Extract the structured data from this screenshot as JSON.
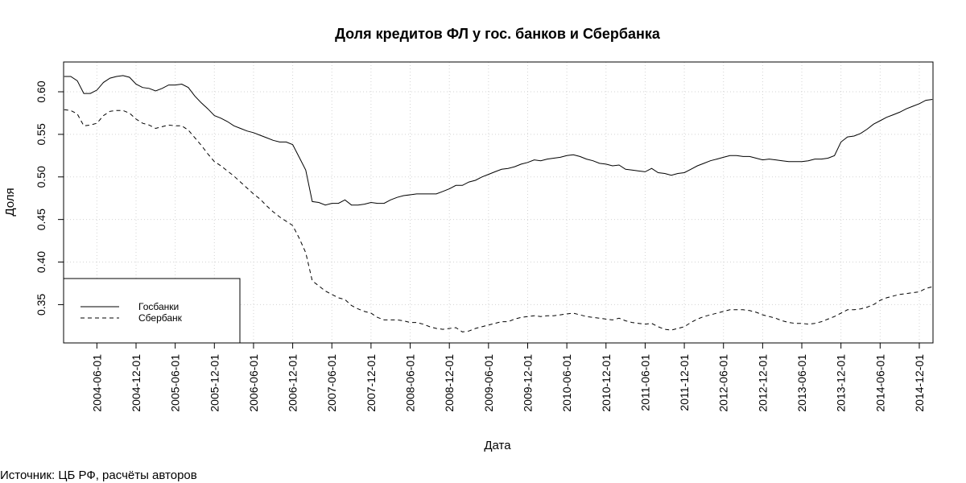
{
  "chart_data": {
    "type": "line",
    "title": "Доля кредитов ФЛ у гос. банков и Сбербанка",
    "xlabel": "Дата",
    "ylabel": "Доля",
    "x_start": "2004-01",
    "x_end": "2015-02",
    "ylim": [
      0.305,
      0.635
    ],
    "yticks": [
      0.35,
      0.4,
      0.45,
      0.5,
      0.55,
      0.6
    ],
    "ytick_labels": [
      "0.35",
      "0.40",
      "0.45",
      "0.50",
      "0.55",
      "0.60"
    ],
    "xtick_labels": [
      "2004-06-01",
      "2004-12-01",
      "2005-06-01",
      "2005-12-01",
      "2006-06-01",
      "2006-12-01",
      "2007-06-01",
      "2007-12-01",
      "2008-06-01",
      "2008-12-01",
      "2009-06-01",
      "2009-12-01",
      "2010-06-01",
      "2010-12-01",
      "2011-06-01",
      "2011-12-01",
      "2012-06-01",
      "2012-12-01",
      "2013-06-01",
      "2013-12-01",
      "2014-06-01",
      "2014-12-01"
    ],
    "grid": true,
    "legend": "bottom-left",
    "series": [
      {
        "name": "Госбанки",
        "line_style": "solid",
        "points": [
          [
            "2004-01",
            0.618
          ],
          [
            "2004-02",
            0.618
          ],
          [
            "2004-03",
            0.613
          ],
          [
            "2004-04",
            0.598
          ],
          [
            "2004-05",
            0.598
          ],
          [
            "2004-06",
            0.602
          ],
          [
            "2004-07",
            0.611
          ],
          [
            "2004-08",
            0.616
          ],
          [
            "2004-09",
            0.618
          ],
          [
            "2004-10",
            0.619
          ],
          [
            "2004-11",
            0.617
          ],
          [
            "2004-12",
            0.609
          ],
          [
            "2005-01",
            0.605
          ],
          [
            "2005-02",
            0.604
          ],
          [
            "2005-03",
            0.601
          ],
          [
            "2005-04",
            0.604
          ],
          [
            "2005-05",
            0.608
          ],
          [
            "2005-06",
            0.608
          ],
          [
            "2005-07",
            0.609
          ],
          [
            "2005-08",
            0.605
          ],
          [
            "2005-09",
            0.595
          ],
          [
            "2005-10",
            0.587
          ],
          [
            "2005-11",
            0.58
          ],
          [
            "2005-12",
            0.572
          ],
          [
            "2006-01",
            0.569
          ],
          [
            "2006-02",
            0.565
          ],
          [
            "2006-03",
            0.56
          ],
          [
            "2006-04",
            0.557
          ],
          [
            "2006-05",
            0.554
          ],
          [
            "2006-06",
            0.552
          ],
          [
            "2006-07",
            0.549
          ],
          [
            "2006-08",
            0.546
          ],
          [
            "2006-09",
            0.543
          ],
          [
            "2006-10",
            0.541
          ],
          [
            "2006-11",
            0.541
          ],
          [
            "2006-12",
            0.538
          ],
          [
            "2007-01",
            0.523
          ],
          [
            "2007-02",
            0.508
          ],
          [
            "2007-03",
            0.471
          ],
          [
            "2007-04",
            0.47
          ],
          [
            "2007-05",
            0.467
          ],
          [
            "2007-06",
            0.469
          ],
          [
            "2007-07",
            0.469
          ],
          [
            "2007-08",
            0.473
          ],
          [
            "2007-09",
            0.467
          ],
          [
            "2007-10",
            0.467
          ],
          [
            "2007-11",
            0.468
          ],
          [
            "2007-12",
            0.47
          ],
          [
            "2008-01",
            0.469
          ],
          [
            "2008-02",
            0.469
          ],
          [
            "2008-03",
            0.473
          ],
          [
            "2008-04",
            0.476
          ],
          [
            "2008-05",
            0.478
          ],
          [
            "2008-06",
            0.479
          ],
          [
            "2008-07",
            0.48
          ],
          [
            "2008-08",
            0.48
          ],
          [
            "2008-09",
            0.48
          ],
          [
            "2008-10",
            0.48
          ],
          [
            "2008-11",
            0.483
          ],
          [
            "2008-12",
            0.486
          ],
          [
            "2009-01",
            0.49
          ],
          [
            "2009-02",
            0.49
          ],
          [
            "2009-03",
            0.494
          ],
          [
            "2009-04",
            0.496
          ],
          [
            "2009-05",
            0.5
          ],
          [
            "2009-06",
            0.503
          ],
          [
            "2009-07",
            0.506
          ],
          [
            "2009-08",
            0.509
          ],
          [
            "2009-09",
            0.51
          ],
          [
            "2009-10",
            0.512
          ],
          [
            "2009-11",
            0.515
          ],
          [
            "2009-12",
            0.517
          ],
          [
            "2010-01",
            0.52
          ],
          [
            "2010-02",
            0.519
          ],
          [
            "2010-03",
            0.521
          ],
          [
            "2010-04",
            0.522
          ],
          [
            "2010-05",
            0.523
          ],
          [
            "2010-06",
            0.525
          ],
          [
            "2010-07",
            0.526
          ],
          [
            "2010-08",
            0.524
          ],
          [
            "2010-09",
            0.521
          ],
          [
            "2010-10",
            0.519
          ],
          [
            "2010-11",
            0.516
          ],
          [
            "2010-12",
            0.515
          ],
          [
            "2011-01",
            0.513
          ],
          [
            "2011-02",
            0.514
          ],
          [
            "2011-03",
            0.509
          ],
          [
            "2011-04",
            0.508
          ],
          [
            "2011-05",
            0.507
          ],
          [
            "2011-06",
            0.506
          ],
          [
            "2011-07",
            0.51
          ],
          [
            "2011-08",
            0.505
          ],
          [
            "2011-09",
            0.504
          ],
          [
            "2011-10",
            0.502
          ],
          [
            "2011-11",
            0.504
          ],
          [
            "2011-12",
            0.505
          ],
          [
            "2012-01",
            0.509
          ],
          [
            "2012-02",
            0.513
          ],
          [
            "2012-03",
            0.516
          ],
          [
            "2012-04",
            0.519
          ],
          [
            "2012-05",
            0.521
          ],
          [
            "2012-06",
            0.523
          ],
          [
            "2012-07",
            0.525
          ],
          [
            "2012-08",
            0.525
          ],
          [
            "2012-09",
            0.524
          ],
          [
            "2012-10",
            0.524
          ],
          [
            "2012-11",
            0.522
          ],
          [
            "2012-12",
            0.52
          ],
          [
            "2013-01",
            0.521
          ],
          [
            "2013-02",
            0.52
          ],
          [
            "2013-03",
            0.519
          ],
          [
            "2013-04",
            0.518
          ],
          [
            "2013-05",
            0.518
          ],
          [
            "2013-06",
            0.518
          ],
          [
            "2013-07",
            0.519
          ],
          [
            "2013-08",
            0.521
          ],
          [
            "2013-09",
            0.521
          ],
          [
            "2013-10",
            0.522
          ],
          [
            "2013-11",
            0.525
          ],
          [
            "2013-12",
            0.541
          ],
          [
            "2014-01",
            0.547
          ],
          [
            "2014-02",
            0.548
          ],
          [
            "2014-03",
            0.551
          ],
          [
            "2014-04",
            0.556
          ],
          [
            "2014-05",
            0.562
          ],
          [
            "2014-06",
            0.566
          ],
          [
            "2014-07",
            0.57
          ],
          [
            "2014-08",
            0.573
          ],
          [
            "2014-09",
            0.576
          ],
          [
            "2014-10",
            0.58
          ],
          [
            "2014-11",
            0.583
          ],
          [
            "2014-12",
            0.586
          ],
          [
            "2015-01",
            0.59
          ],
          [
            "2015-02",
            0.591
          ]
        ]
      },
      {
        "name": "Сбербанк",
        "line_style": "dashed",
        "points": [
          [
            "2004-01",
            0.579
          ],
          [
            "2004-02",
            0.578
          ],
          [
            "2004-03",
            0.574
          ],
          [
            "2004-04",
            0.56
          ],
          [
            "2004-05",
            0.561
          ],
          [
            "2004-06",
            0.563
          ],
          [
            "2004-07",
            0.572
          ],
          [
            "2004-08",
            0.577
          ],
          [
            "2004-09",
            0.578
          ],
          [
            "2004-10",
            0.578
          ],
          [
            "2004-11",
            0.575
          ],
          [
            "2004-12",
            0.568
          ],
          [
            "2005-01",
            0.563
          ],
          [
            "2005-02",
            0.561
          ],
          [
            "2005-03",
            0.557
          ],
          [
            "2005-04",
            0.559
          ],
          [
            "2005-05",
            0.561
          ],
          [
            "2005-06",
            0.56
          ],
          [
            "2005-07",
            0.56
          ],
          [
            "2005-08",
            0.555
          ],
          [
            "2005-09",
            0.546
          ],
          [
            "2005-10",
            0.537
          ],
          [
            "2005-11",
            0.527
          ],
          [
            "2005-12",
            0.518
          ],
          [
            "2006-01",
            0.513
          ],
          [
            "2006-02",
            0.507
          ],
          [
            "2006-03",
            0.501
          ],
          [
            "2006-04",
            0.494
          ],
          [
            "2006-05",
            0.487
          ],
          [
            "2006-06",
            0.48
          ],
          [
            "2006-07",
            0.474
          ],
          [
            "2006-08",
            0.466
          ],
          [
            "2006-09",
            0.459
          ],
          [
            "2006-10",
            0.453
          ],
          [
            "2006-11",
            0.448
          ],
          [
            "2006-12",
            0.443
          ],
          [
            "2007-01",
            0.428
          ],
          [
            "2007-02",
            0.411
          ],
          [
            "2007-03",
            0.378
          ],
          [
            "2007-04",
            0.372
          ],
          [
            "2007-05",
            0.366
          ],
          [
            "2007-06",
            0.362
          ],
          [
            "2007-07",
            0.358
          ],
          [
            "2007-08",
            0.356
          ],
          [
            "2007-09",
            0.349
          ],
          [
            "2007-10",
            0.345
          ],
          [
            "2007-11",
            0.342
          ],
          [
            "2007-12",
            0.34
          ],
          [
            "2008-01",
            0.335
          ],
          [
            "2008-02",
            0.332
          ],
          [
            "2008-03",
            0.332
          ],
          [
            "2008-04",
            0.332
          ],
          [
            "2008-05",
            0.331
          ],
          [
            "2008-06",
            0.329
          ],
          [
            "2008-07",
            0.329
          ],
          [
            "2008-08",
            0.327
          ],
          [
            "2008-09",
            0.324
          ],
          [
            "2008-10",
            0.322
          ],
          [
            "2008-11",
            0.321
          ],
          [
            "2008-12",
            0.322
          ],
          [
            "2009-01",
            0.323
          ],
          [
            "2009-02",
            0.318
          ],
          [
            "2009-03",
            0.319
          ],
          [
            "2009-04",
            0.322
          ],
          [
            "2009-05",
            0.324
          ],
          [
            "2009-06",
            0.326
          ],
          [
            "2009-07",
            0.328
          ],
          [
            "2009-08",
            0.33
          ],
          [
            "2009-09",
            0.33
          ],
          [
            "2009-10",
            0.333
          ],
          [
            "2009-11",
            0.335
          ],
          [
            "2009-12",
            0.336
          ],
          [
            "2010-01",
            0.337
          ],
          [
            "2010-02",
            0.336
          ],
          [
            "2010-03",
            0.337
          ],
          [
            "2010-04",
            0.337
          ],
          [
            "2010-05",
            0.338
          ],
          [
            "2010-06",
            0.339
          ],
          [
            "2010-07",
            0.34
          ],
          [
            "2010-08",
            0.338
          ],
          [
            "2010-09",
            0.336
          ],
          [
            "2010-10",
            0.335
          ],
          [
            "2010-11",
            0.334
          ],
          [
            "2010-12",
            0.333
          ],
          [
            "2011-01",
            0.332
          ],
          [
            "2011-02",
            0.334
          ],
          [
            "2011-03",
            0.331
          ],
          [
            "2011-04",
            0.329
          ],
          [
            "2011-05",
            0.328
          ],
          [
            "2011-06",
            0.327
          ],
          [
            "2011-07",
            0.328
          ],
          [
            "2011-08",
            0.324
          ],
          [
            "2011-09",
            0.321
          ],
          [
            "2011-10",
            0.32
          ],
          [
            "2011-11",
            0.322
          ],
          [
            "2011-12",
            0.324
          ],
          [
            "2012-01",
            0.329
          ],
          [
            "2012-02",
            0.333
          ],
          [
            "2012-03",
            0.336
          ],
          [
            "2012-04",
            0.338
          ],
          [
            "2012-05",
            0.34
          ],
          [
            "2012-06",
            0.342
          ],
          [
            "2012-07",
            0.344
          ],
          [
            "2012-08",
            0.344
          ],
          [
            "2012-09",
            0.344
          ],
          [
            "2012-10",
            0.343
          ],
          [
            "2012-11",
            0.341
          ],
          [
            "2012-12",
            0.338
          ],
          [
            "2013-01",
            0.336
          ],
          [
            "2013-02",
            0.334
          ],
          [
            "2013-03",
            0.331
          ],
          [
            "2013-04",
            0.329
          ],
          [
            "2013-05",
            0.328
          ],
          [
            "2013-06",
            0.328
          ],
          [
            "2013-07",
            0.327
          ],
          [
            "2013-08",
            0.328
          ],
          [
            "2013-09",
            0.33
          ],
          [
            "2013-10",
            0.333
          ],
          [
            "2013-11",
            0.336
          ],
          [
            "2013-12",
            0.34
          ],
          [
            "2014-01",
            0.344
          ],
          [
            "2014-02",
            0.344
          ],
          [
            "2014-03",
            0.345
          ],
          [
            "2014-04",
            0.347
          ],
          [
            "2014-05",
            0.35
          ],
          [
            "2014-06",
            0.355
          ],
          [
            "2014-07",
            0.358
          ],
          [
            "2014-08",
            0.36
          ],
          [
            "2014-09",
            0.362
          ],
          [
            "2014-10",
            0.363
          ],
          [
            "2014-11",
            0.364
          ],
          [
            "2014-12",
            0.365
          ],
          [
            "2015-01",
            0.369
          ],
          [
            "2015-02",
            0.371
          ]
        ]
      }
    ]
  },
  "footer": {
    "source": "Источник: ЦБ РФ, расчёты авторов"
  }
}
